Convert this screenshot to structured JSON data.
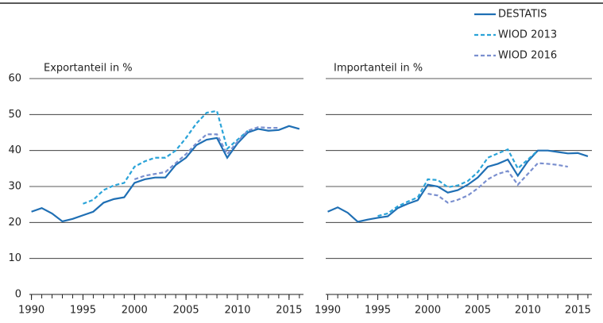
{
  "chart_data": [
    {
      "type": "line",
      "y_label": "Exportanteil in %",
      "x": [
        1990,
        1991,
        1992,
        1993,
        1994,
        1995,
        1996,
        1997,
        1998,
        1999,
        2000,
        2001,
        2002,
        2003,
        2004,
        2005,
        2006,
        2007,
        2008,
        2009,
        2010,
        2011,
        2012,
        2013,
        2014,
        2015,
        2016
      ],
      "series": [
        {
          "name": "DESTATIS",
          "color": "#1f6fb4",
          "line_style": "solid",
          "values": [
            23,
            24,
            22.5,
            20.3,
            21,
            22,
            23,
            25.5,
            26.5,
            27,
            31,
            32,
            32.5,
            32.5,
            36,
            38,
            41.5,
            43,
            43.5,
            38,
            42,
            45,
            46,
            45.5,
            45.7,
            46.8,
            46
          ]
        },
        {
          "name": "WIOD 2013",
          "color": "#2aa3d8",
          "line_style": "dashed",
          "values": [
            null,
            null,
            null,
            null,
            null,
            25.2,
            26.3,
            29,
            30.3,
            31,
            35.5,
            37,
            38,
            38,
            40,
            43.5,
            47.5,
            50.5,
            51,
            40.5,
            43,
            45.5,
            null,
            null,
            null,
            null,
            null
          ]
        },
        {
          "name": "WIOD 2016",
          "color": "#7a8fcf",
          "line_style": "dashed",
          "values": [
            null,
            null,
            null,
            null,
            null,
            null,
            null,
            null,
            null,
            null,
            32,
            33,
            33.5,
            34,
            36.5,
            39,
            42,
            44.5,
            44.5,
            39,
            42.5,
            45.5,
            46.5,
            46.3,
            46.3,
            null,
            null
          ]
        }
      ],
      "xlim": [
        1989.8,
        2016.4
      ],
      "xticks": [
        1990,
        1995,
        2000,
        2005,
        2010,
        2015
      ],
      "ylim": [
        0,
        60
      ],
      "yticks": [
        0,
        10,
        20,
        30,
        40,
        50,
        60
      ],
      "grid": true
    },
    {
      "type": "line",
      "y_label": "Importanteil in %",
      "x": [
        1990,
        1991,
        1992,
        1993,
        1994,
        1995,
        1996,
        1997,
        1998,
        1999,
        2000,
        2001,
        2002,
        2003,
        2004,
        2005,
        2006,
        2007,
        2008,
        2009,
        2010,
        2011,
        2012,
        2013,
        2014,
        2015,
        2016
      ],
      "series": [
        {
          "color": "#1f6fb4",
          "line_style": "solid",
          "values": [
            23,
            24.2,
            22.7,
            20.2,
            20.8,
            21.3,
            21.7,
            24,
            25.2,
            26.2,
            30.5,
            30,
            28.3,
            29,
            30.5,
            32.5,
            35.5,
            36.3,
            37.5,
            33,
            37,
            40,
            40,
            39.6,
            39.2,
            39.3,
            38.4
          ]
        },
        {
          "color": "#2aa3d8",
          "line_style": "dashed",
          "values": [
            null,
            null,
            null,
            null,
            null,
            21.8,
            22.5,
            24.5,
            25.8,
            27,
            32,
            31.8,
            29.8,
            30.3,
            31.5,
            34,
            38,
            39.2,
            40.3,
            35,
            37.5,
            40,
            null,
            null,
            null,
            null,
            null
          ]
        },
        {
          "color": "#7a8fcf",
          "line_style": "dashed",
          "values": [
            null,
            null,
            null,
            null,
            null,
            null,
            null,
            null,
            null,
            null,
            28,
            27.5,
            25.5,
            26.3,
            27.5,
            29.5,
            32,
            33.5,
            34.3,
            30.5,
            33.5,
            36.5,
            36.3,
            36,
            35.5,
            null,
            null
          ]
        }
      ],
      "xlim": [
        1989.8,
        2016.4
      ],
      "xticks": [
        1990,
        1995,
        2000,
        2005,
        2010,
        2015
      ],
      "ylim": [
        0,
        60
      ],
      "yticks": [
        0,
        10,
        20,
        30,
        40,
        50,
        60
      ],
      "grid": true
    }
  ]
}
